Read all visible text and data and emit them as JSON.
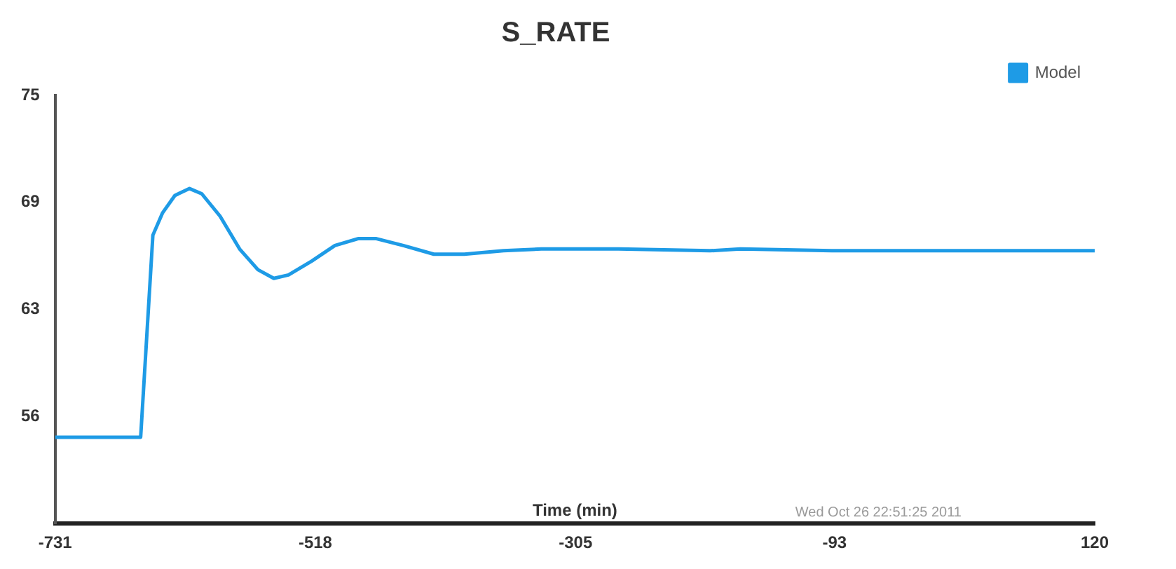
{
  "chart_data": {
    "type": "line",
    "title": "S_RATE",
    "xlabel": "Time (min)",
    "annotations": [
      "Wed Oct 26 22:51:25 2011"
    ],
    "x": [
      -731,
      -661,
      -651,
      -643,
      -633,
      -621,
      -611,
      -596,
      -580,
      -565,
      -552,
      -540,
      -521,
      -502,
      -483,
      -468,
      -446,
      -421,
      -396,
      -364,
      -333,
      -270,
      -195,
      -170,
      -95,
      17,
      120
    ],
    "series": [
      {
        "name": "Model",
        "color": "#1e9be6",
        "values": [
          55.2,
          55.2,
          66.9,
          68.2,
          69.2,
          69.6,
          69.3,
          68.0,
          66.1,
          64.9,
          64.4,
          64.6,
          65.4,
          66.3,
          66.7,
          66.7,
          66.3,
          65.8,
          65.8,
          66.0,
          66.1,
          66.1,
          66.0,
          66.1,
          66.0,
          66.0,
          66.0
        ]
      }
    ],
    "xlim": [
      -731,
      120
    ],
    "xticks": [
      -731,
      -518,
      -305,
      -93,
      120
    ],
    "ylim": [
      50.2,
      75
    ],
    "yticks": [
      {
        "value": 56.4,
        "label": "56"
      },
      {
        "value": 62.6,
        "label": "63"
      },
      {
        "value": 68.8,
        "label": "69"
      },
      75
    ],
    "grid": false,
    "legend": "top right",
    "marker": "none",
    "line_style": "solid"
  }
}
